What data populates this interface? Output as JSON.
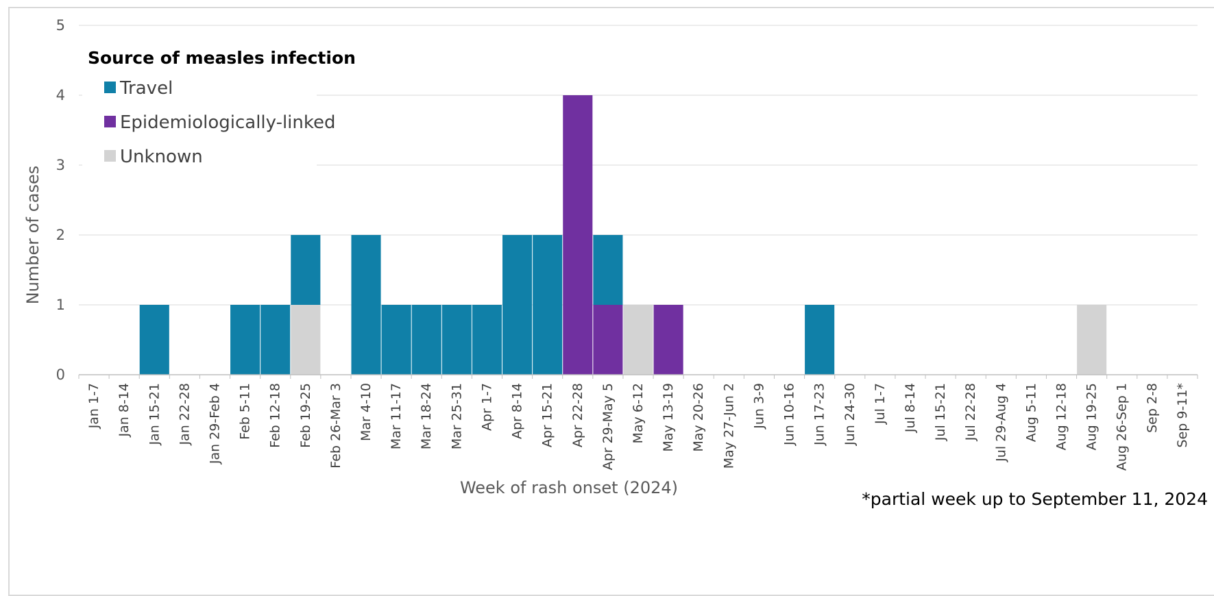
{
  "chart_data": {
    "type": "bar",
    "stacked": true,
    "xlabel": "Week of rash onset (2024)",
    "ylabel": "Number of cases",
    "ylim": [
      0,
      5
    ],
    "yticks": [
      0,
      1,
      2,
      3,
      4,
      5
    ],
    "grid": true,
    "legend": {
      "title": "Source of measles infection",
      "placement": "top-left"
    },
    "footnote": "*partial week up to September 11, 2024",
    "categories": [
      "Jan 1-7",
      "Jan 8-14",
      "Jan 15-21",
      "Jan 22-28",
      "Jan 29-Feb 4",
      "Feb 5-11",
      "Feb 12-18",
      "Feb 19-25",
      "Feb 26-Mar 3",
      "Mar 4-10",
      "Mar 11-17",
      "Mar 18-24",
      "Mar 25-31",
      "Apr 1-7",
      "Apr 8-14",
      "Apr 15-21",
      "Apr 22-28",
      "Apr 29-May 5",
      "May 6-12",
      "May 13-19",
      "May 20-26",
      "May 27-Jun 2",
      "Jun 3-9",
      "Jun 10-16",
      "Jun 17-23",
      "Jun 24-30",
      "Jul 1-7",
      "Jul 8-14",
      "Jul 15-21",
      "Jul 22-28",
      "Jul 29-Aug 4",
      "Aug 5-11",
      "Aug 12-18",
      "Aug 19-25",
      "Aug 26-Sep 1",
      "Sep 2-8",
      "Sep 9-11*"
    ],
    "series": [
      {
        "name": "Unknown",
        "color": "#d3d3d3",
        "values": [
          0,
          0,
          0,
          0,
          0,
          0,
          0,
          1,
          0,
          0,
          0,
          0,
          0,
          0,
          0,
          0,
          0,
          0,
          1,
          0,
          0,
          0,
          0,
          0,
          0,
          0,
          0,
          0,
          0,
          0,
          0,
          0,
          0,
          1,
          0,
          0,
          0
        ]
      },
      {
        "name": "Epidemiologically-linked",
        "color": "#7030a0",
        "values": [
          0,
          0,
          0,
          0,
          0,
          0,
          0,
          0,
          0,
          0,
          0,
          0,
          0,
          0,
          0,
          0,
          4,
          1,
          0,
          1,
          0,
          0,
          0,
          0,
          0,
          0,
          0,
          0,
          0,
          0,
          0,
          0,
          0,
          0,
          0,
          0,
          0
        ]
      },
      {
        "name": "Travel",
        "color": "#1080a8",
        "values": [
          0,
          0,
          1,
          0,
          0,
          1,
          1,
          1,
          0,
          2,
          1,
          1,
          1,
          1,
          2,
          2,
          0,
          1,
          0,
          0,
          0,
          0,
          0,
          0,
          1,
          0,
          0,
          0,
          0,
          0,
          0,
          0,
          0,
          0,
          0,
          0,
          0
        ]
      }
    ],
    "legend_order": [
      "Travel",
      "Epidemiologically-linked",
      "Unknown"
    ]
  }
}
